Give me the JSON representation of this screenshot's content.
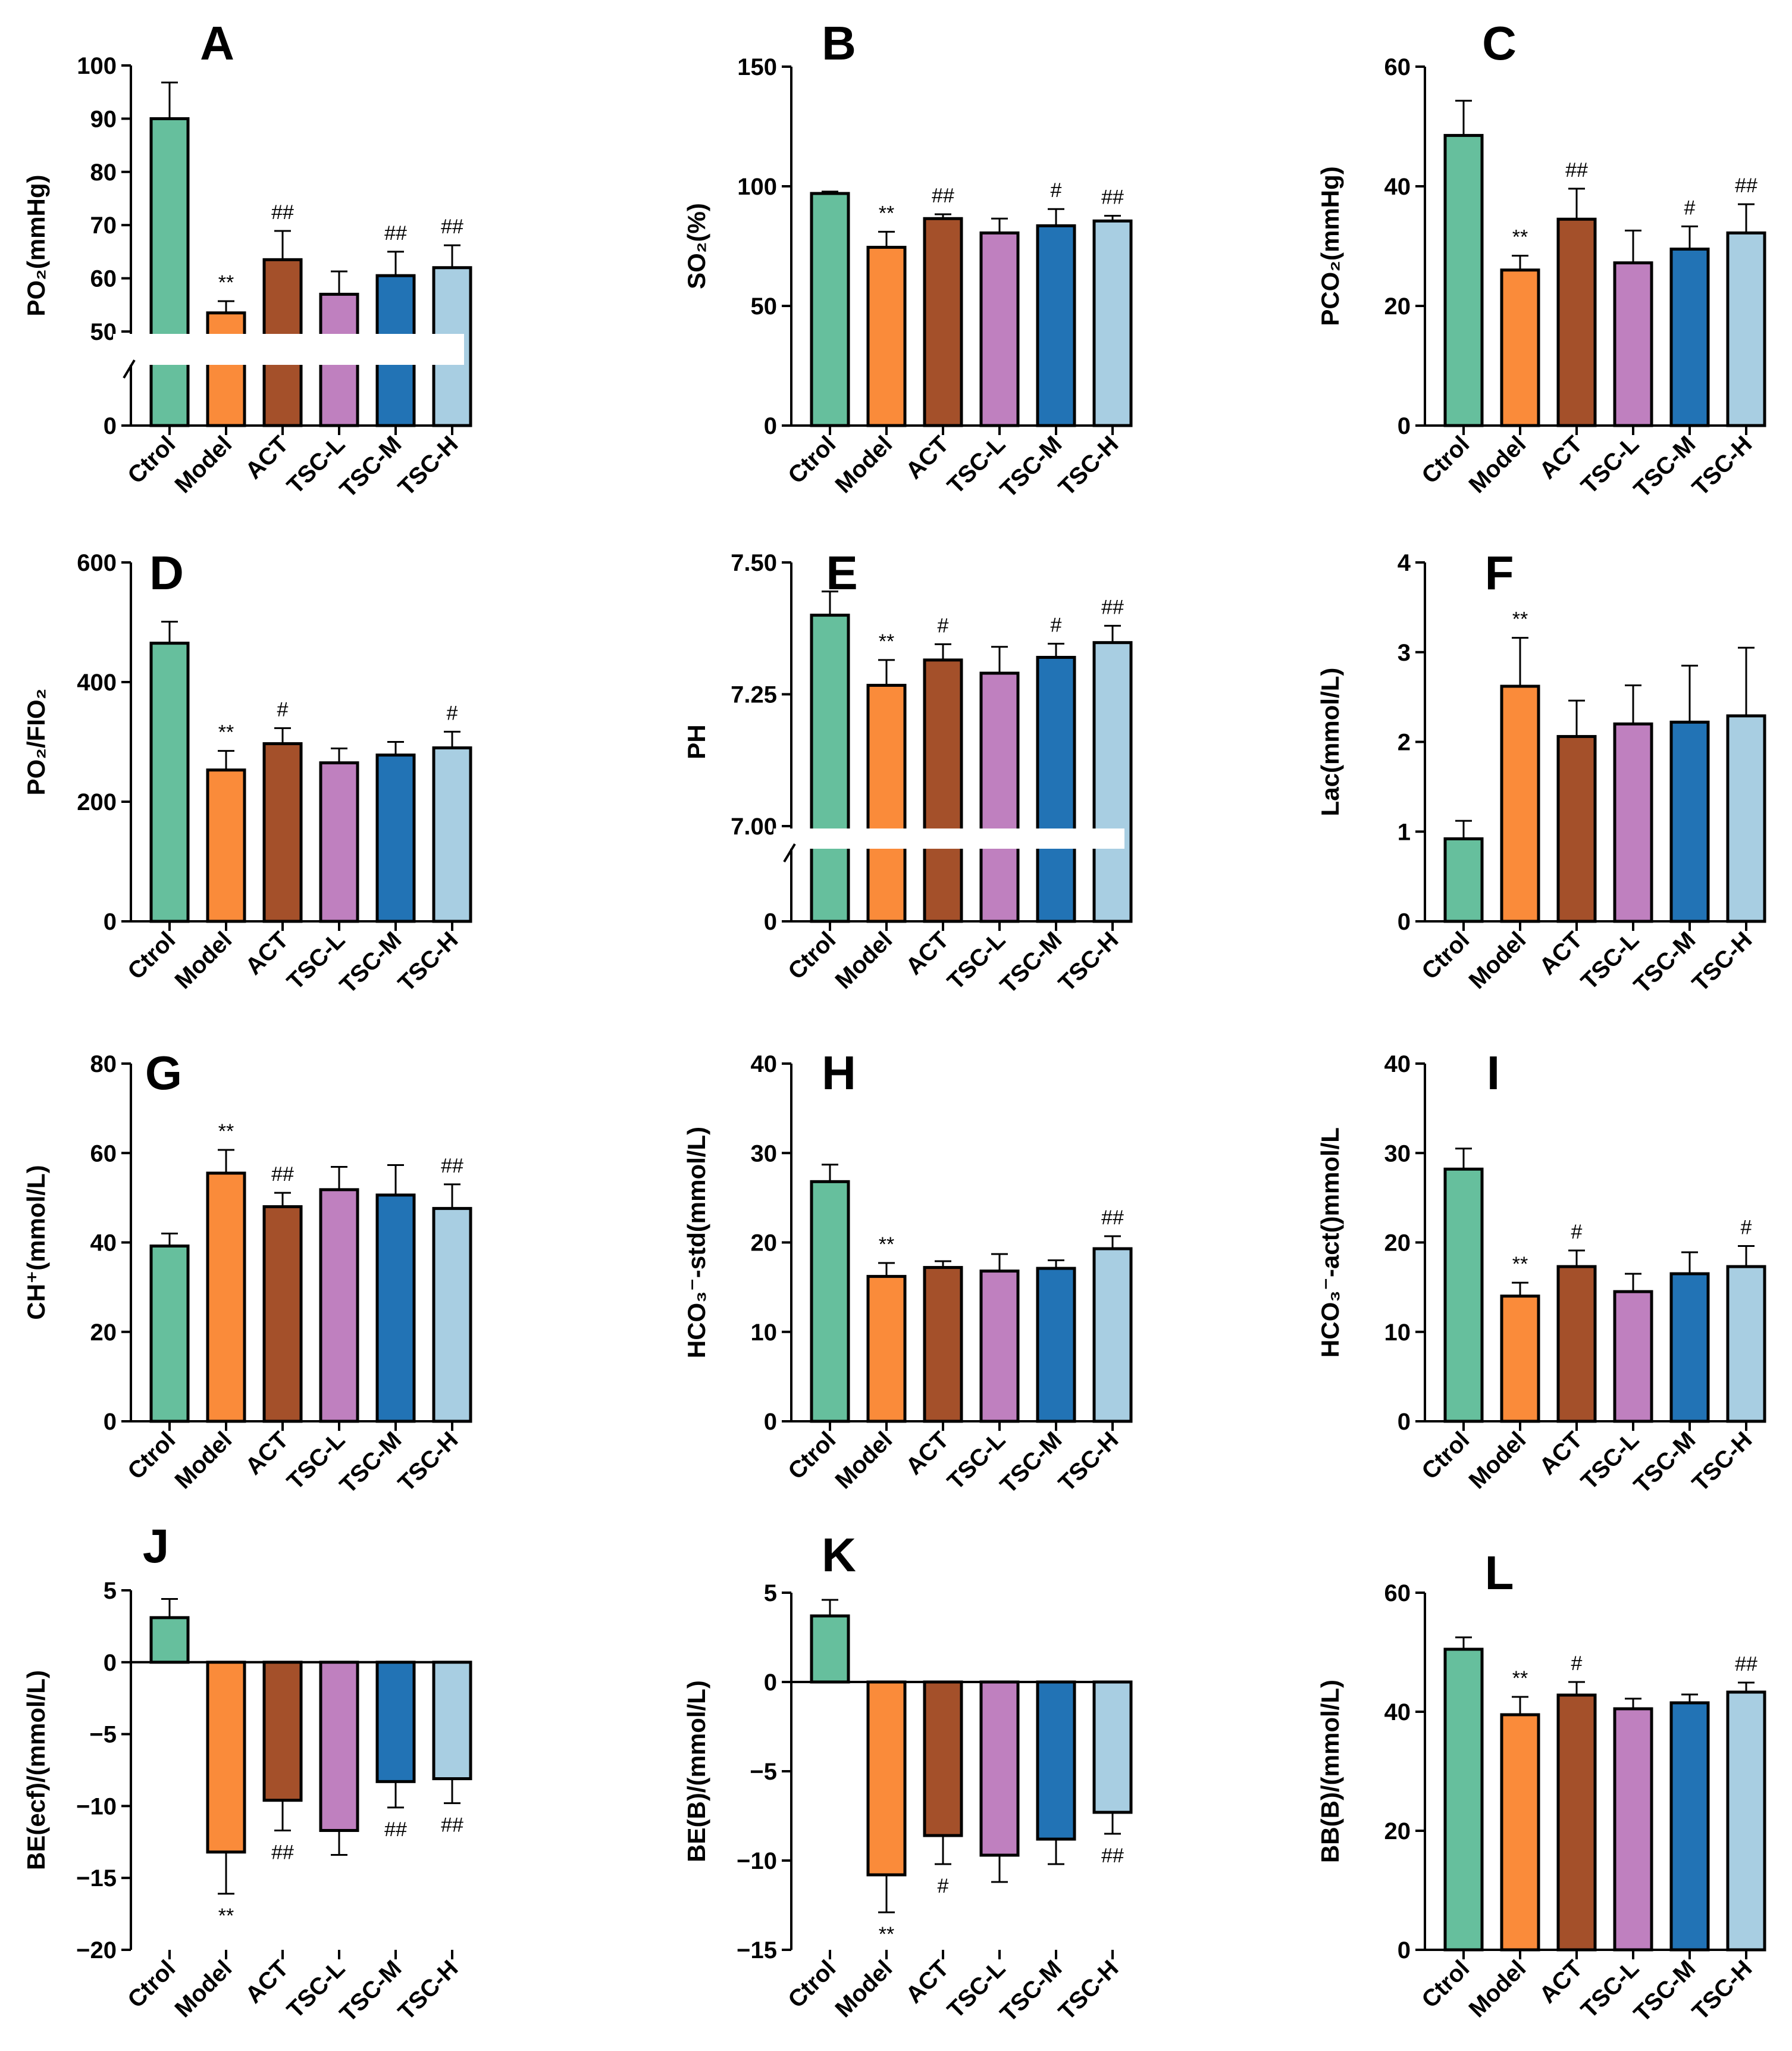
{
  "figure": {
    "categories": [
      "Ctrol",
      "Model",
      "ACT",
      "TSC-L",
      "TSC-M",
      "TSC-H"
    ],
    "colors": [
      "#66bf9d",
      "#fa8b3a",
      "#a4502a",
      "#bf80bf",
      "#2273b5",
      "#a8cee2"
    ]
  },
  "chart_data": [
    {
      "letter": "A",
      "type": "bar",
      "ylabel": "PO₂(mmHg)",
      "yticks": [
        0,
        50,
        60,
        70,
        80,
        90,
        100
      ],
      "ytick_labels": [
        "0",
        "50",
        "60",
        "70",
        "80",
        "90",
        "100"
      ],
      "axis_break": {
        "lower_max": 50,
        "upper_min": 50,
        "upper_max": 100
      },
      "values": [
        90,
        53.5,
        63.5,
        57,
        60.5,
        62
      ],
      "errors": [
        6.8,
        2.2,
        5.4,
        4.3,
        4.5,
        4.2
      ],
      "sig_labels": [
        "",
        "**",
        "##",
        "",
        "##",
        "##"
      ],
      "sig_position": "above"
    },
    {
      "letter": "B",
      "type": "bar",
      "ylabel": "SO₂(%)",
      "yticks": [
        0,
        50,
        100,
        150
      ],
      "ytick_labels": [
        "0",
        "50",
        "100",
        "150"
      ],
      "ylim": [
        0,
        150
      ],
      "values": [
        97,
        74.5,
        86.5,
        80.5,
        83.5,
        85.5
      ],
      "errors": [
        0.8,
        6.5,
        1.8,
        6,
        7,
        2.2
      ],
      "sig_labels": [
        "",
        "**",
        "##",
        "",
        "#",
        "##"
      ],
      "sig_position": "above"
    },
    {
      "letter": "C",
      "type": "bar",
      "ylabel": "PCO₂(mmHg)",
      "yticks": [
        0,
        20,
        40,
        60
      ],
      "ytick_labels": [
        "0",
        "20",
        "40",
        "60"
      ],
      "ylim": [
        0,
        60
      ],
      "values": [
        48.5,
        26,
        34.5,
        27.2,
        29.5,
        32.2
      ],
      "errors": [
        5.8,
        2.4,
        5.1,
        5.4,
        3.8,
        4.8
      ],
      "sig_labels": [
        "",
        "**",
        "##",
        "",
        "#",
        "##"
      ],
      "sig_position": "above"
    },
    {
      "letter": "D",
      "type": "bar",
      "ylabel": "PO₂/FIO₂",
      "yticks": [
        0,
        200,
        400,
        600
      ],
      "ytick_labels": [
        "0",
        "200",
        "400",
        "600"
      ],
      "ylim": [
        0,
        600
      ],
      "values": [
        465,
        253,
        297,
        265,
        278,
        290
      ],
      "errors": [
        36,
        32,
        26,
        24,
        22,
        27
      ],
      "sig_labels": [
        "",
        "**",
        "#",
        "",
        "",
        "#"
      ],
      "sig_position": "above"
    },
    {
      "letter": "E",
      "type": "bar",
      "ylabel": "PH",
      "yticks": [
        0,
        7.0,
        7.25,
        7.5
      ],
      "ytick_labels": [
        "0",
        "7.00",
        "7.25",
        "7.50"
      ],
      "axis_break": {
        "lower_max": 7.0,
        "upper_min": 7.0,
        "upper_max": 7.5
      },
      "values": [
        7.4,
        7.267,
        7.315,
        7.29,
        7.32,
        7.348
      ],
      "errors": [
        0.045,
        0.048,
        0.03,
        0.05,
        0.026,
        0.032
      ],
      "sig_labels": [
        "",
        "**",
        "#",
        "",
        "#",
        "##"
      ],
      "sig_position": "above"
    },
    {
      "letter": "F",
      "type": "bar",
      "ylabel": "Lac(mmol/L)",
      "yticks": [
        0,
        1,
        2,
        3,
        4
      ],
      "ytick_labels": [
        "0",
        "1",
        "2",
        "3",
        "4"
      ],
      "ylim": [
        0,
        4
      ],
      "values": [
        0.92,
        2.62,
        2.06,
        2.2,
        2.22,
        2.29
      ],
      "errors": [
        0.2,
        0.54,
        0.4,
        0.43,
        0.63,
        0.76
      ],
      "sig_labels": [
        "",
        "**",
        "",
        "",
        "",
        ""
      ],
      "sig_position": "above"
    },
    {
      "letter": "G",
      "type": "bar",
      "ylabel": "CH⁺(mmol/L)",
      "yticks": [
        0,
        20,
        40,
        60,
        80
      ],
      "ytick_labels": [
        "0",
        "20",
        "40",
        "60",
        "80"
      ],
      "ylim": [
        0,
        80
      ],
      "values": [
        39.2,
        55.5,
        48,
        51.8,
        50.6,
        47.6
      ],
      "errors": [
        2.8,
        5.2,
        3.1,
        5.1,
        6.7,
        5.4
      ],
      "sig_labels": [
        "",
        "**",
        "##",
        "",
        "",
        "##"
      ],
      "sig_position": "above"
    },
    {
      "letter": "H",
      "type": "bar",
      "ylabel": "HCO₃⁻-std(mmol/L)",
      "yticks": [
        0,
        10,
        20,
        30,
        40
      ],
      "ytick_labels": [
        "0",
        "10",
        "20",
        "30",
        "40"
      ],
      "ylim": [
        0,
        40
      ],
      "values": [
        26.8,
        16.2,
        17.2,
        16.8,
        17.1,
        19.3
      ],
      "errors": [
        1.9,
        1.5,
        0.7,
        1.9,
        0.9,
        1.4
      ],
      "sig_labels": [
        "",
        "**",
        "",
        "",
        "",
        "##"
      ],
      "sig_position": "above"
    },
    {
      "letter": "I",
      "type": "bar",
      "ylabel": "HCO₃⁻-act()mmol/L",
      "yticks": [
        0,
        10,
        20,
        30,
        40
      ],
      "ytick_labels": [
        "0",
        "10",
        "20",
        "30",
        "40"
      ],
      "ylim": [
        0,
        40
      ],
      "values": [
        28.2,
        14,
        17.3,
        14.5,
        16.5,
        17.3
      ],
      "errors": [
        2.3,
        1.5,
        1.8,
        2,
        2.4,
        2.3
      ],
      "sig_labels": [
        "",
        "**",
        "#",
        "",
        "",
        "#"
      ],
      "sig_position": "above"
    },
    {
      "letter": "J",
      "type": "bar",
      "ylabel": "BE(ecf)/(mmol/L)",
      "yticks": [
        -20,
        -15,
        -10,
        -5,
        0,
        5
      ],
      "ytick_labels": [
        "−20",
        "−15",
        "−10",
        "−5",
        "0",
        "5"
      ],
      "ylim": [
        -20,
        5
      ],
      "values": [
        3.1,
        -13.2,
        -9.6,
        -11.7,
        -8.3,
        -8.1
      ],
      "errors": [
        1.3,
        2.9,
        2.1,
        1.7,
        1.8,
        1.7
      ],
      "sig_labels": [
        "",
        "**",
        "##",
        "",
        "##",
        "##"
      ],
      "sig_position": "below"
    },
    {
      "letter": "K",
      "type": "bar",
      "ylabel": "BE(B)/(mmol/L)",
      "yticks": [
        -15,
        -10,
        -5,
        0,
        5
      ],
      "ytick_labels": [
        "−15",
        "−10",
        "−5",
        "0",
        "5"
      ],
      "ylim": [
        -15,
        5
      ],
      "values": [
        3.7,
        -10.8,
        -8.6,
        -9.7,
        -8.8,
        -7.3
      ],
      "errors": [
        0.9,
        2.1,
        1.6,
        1.5,
        1.4,
        1.2
      ],
      "sig_labels": [
        "",
        "**",
        "#",
        "",
        "",
        "##"
      ],
      "sig_position": "below"
    },
    {
      "letter": "L",
      "type": "bar",
      "ylabel": "BB(B)/(mmol/L)",
      "yticks": [
        0,
        20,
        40,
        60
      ],
      "ytick_labels": [
        "0",
        "20",
        "40",
        "60"
      ],
      "ylim": [
        0,
        60
      ],
      "values": [
        50.5,
        39.5,
        42.8,
        40.5,
        41.5,
        43.3
      ],
      "errors": [
        2,
        3,
        2.2,
        1.7,
        1.4,
        1.6
      ],
      "sig_labels": [
        "",
        "**",
        "#",
        "",
        "",
        "##"
      ],
      "sig_position": "above"
    }
  ]
}
